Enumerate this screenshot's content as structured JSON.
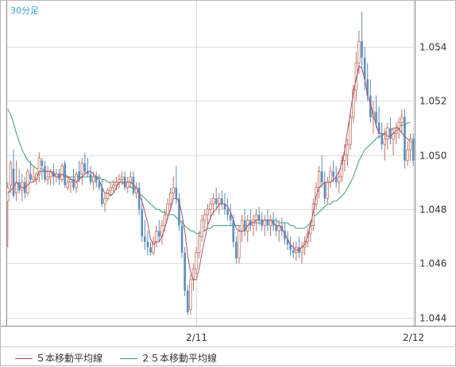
{
  "timeframe_label": "30分足",
  "colors": {
    "up": "#c07060",
    "down": "#5a8ebf",
    "ma5": "#a85070",
    "ma25": "#3aa070",
    "grid": "#dddddd",
    "axis": "#888888"
  },
  "chart_data": {
    "type": "candlestick",
    "title": "",
    "xlabel": "",
    "ylabel": "",
    "ylim": [
      1.0437,
      1.0557
    ],
    "yticks": [
      1.044,
      1.046,
      1.048,
      1.05,
      1.052,
      1.054
    ],
    "ytick_labels": [
      "1.044",
      "1.046",
      "1.048",
      "1.050",
      "1.052",
      "1.054"
    ],
    "xticks": [
      {
        "index": 66,
        "label": "2/11"
      },
      {
        "index": 142,
        "label": "2/12"
      }
    ],
    "grid": true,
    "legend_position": "bottom-left",
    "legend": [
      {
        "name": "５本移動平均線",
        "color_key": "ma5"
      },
      {
        "name": "２５本移動平均線",
        "color_key": "ma25"
      }
    ],
    "ohlc": [
      [
        1.0483,
        1.049,
        1.0466,
        1.0488
      ],
      [
        1.0489,
        1.0498,
        1.0486,
        1.0497
      ],
      [
        1.0495,
        1.0502,
        1.0484,
        1.0485
      ],
      [
        1.0486,
        1.0498,
        1.0483,
        1.049
      ],
      [
        1.049,
        1.0495,
        1.0486,
        1.0487
      ],
      [
        1.0487,
        1.0493,
        1.0483,
        1.049
      ],
      [
        1.049,
        1.0492,
        1.0484,
        1.0486
      ],
      [
        1.0486,
        1.0495,
        1.0485,
        1.0494
      ],
      [
        1.0493,
        1.0498,
        1.049,
        1.0491
      ],
      [
        1.0491,
        1.0496,
        1.049,
        1.0492
      ],
      [
        1.0491,
        1.0494,
        1.0489,
        1.0493
      ],
      [
        1.0493,
        1.0501,
        1.049,
        1.0499
      ],
      [
        1.0498,
        1.0499,
        1.0491,
        1.0496
      ],
      [
        1.0496,
        1.0498,
        1.049,
        1.0491
      ],
      [
        1.0491,
        1.0496,
        1.0489,
        1.0492
      ],
      [
        1.0492,
        1.0495,
        1.0489,
        1.0494
      ],
      [
        1.0494,
        1.0497,
        1.0489,
        1.0492
      ],
      [
        1.0492,
        1.0495,
        1.049,
        1.0493
      ],
      [
        1.0493,
        1.0495,
        1.0489,
        1.0491
      ],
      [
        1.0491,
        1.0497,
        1.049,
        1.0496
      ],
      [
        1.0497,
        1.0498,
        1.0488,
        1.0489
      ],
      [
        1.0488,
        1.0492,
        1.0487,
        1.049
      ],
      [
        1.049,
        1.0492,
        1.0486,
        1.0491
      ],
      [
        1.0491,
        1.0495,
        1.0487,
        1.0488
      ],
      [
        1.0488,
        1.0494,
        1.0486,
        1.0493
      ],
      [
        1.0494,
        1.0498,
        1.049,
        1.0491
      ],
      [
        1.0493,
        1.0499,
        1.0489,
        1.0497
      ],
      [
        1.0497,
        1.0501,
        1.0493,
        1.0494
      ],
      [
        1.0494,
        1.0499,
        1.0492,
        1.0493
      ],
      [
        1.0493,
        1.0496,
        1.0489,
        1.049
      ],
      [
        1.049,
        1.0494,
        1.0487,
        1.0492
      ],
      [
        1.0492,
        1.0494,
        1.0488,
        1.049
      ],
      [
        1.049,
        1.0493,
        1.0487,
        1.0488
      ],
      [
        1.0488,
        1.0491,
        1.0481,
        1.0482
      ],
      [
        1.0482,
        1.0486,
        1.0479,
        1.0484
      ],
      [
        1.0484,
        1.0488,
        1.0483,
        1.0487
      ],
      [
        1.0487,
        1.049,
        1.0485,
        1.0488
      ],
      [
        1.0488,
        1.0491,
        1.0486,
        1.0489
      ],
      [
        1.0489,
        1.0492,
        1.0487,
        1.049
      ],
      [
        1.049,
        1.0493,
        1.0488,
        1.0491
      ],
      [
        1.0491,
        1.0494,
        1.0489,
        1.0492
      ],
      [
        1.0492,
        1.0494,
        1.0487,
        1.0488
      ],
      [
        1.0488,
        1.0492,
        1.0486,
        1.049
      ],
      [
        1.049,
        1.0494,
        1.0488,
        1.0492
      ],
      [
        1.0492,
        1.0494,
        1.0485,
        1.0486
      ],
      [
        1.0486,
        1.049,
        1.0484,
        1.0488
      ],
      [
        1.0488,
        1.049,
        1.0478,
        1.048
      ],
      [
        1.048,
        1.0484,
        1.0468,
        1.047
      ],
      [
        1.047,
        1.0476,
        1.0465,
        1.0468
      ],
      [
        1.0468,
        1.0472,
        1.0463,
        1.0466
      ],
      [
        1.0466,
        1.0468,
        1.0463,
        1.0464
      ],
      [
        1.0464,
        1.047,
        1.0463,
        1.0468
      ],
      [
        1.0468,
        1.0474,
        1.0466,
        1.0472
      ],
      [
        1.0472,
        1.0476,
        1.0468,
        1.047
      ],
      [
        1.047,
        1.0476,
        1.0467,
        1.0474
      ],
      [
        1.0474,
        1.048,
        1.0472,
        1.0478
      ],
      [
        1.0478,
        1.0484,
        1.0476,
        1.0482
      ],
      [
        1.0482,
        1.0488,
        1.048,
        1.0486
      ],
      [
        1.0486,
        1.0492,
        1.0484,
        1.0488
      ],
      [
        1.0488,
        1.0496,
        1.0482,
        1.0484
      ],
      [
        1.0484,
        1.0486,
        1.0472,
        1.0474
      ],
      [
        1.0474,
        1.0476,
        1.0462,
        1.0464
      ],
      [
        1.0464,
        1.0466,
        1.0448,
        1.045
      ],
      [
        1.045,
        1.0452,
        1.0441,
        1.0442
      ],
      [
        1.0443,
        1.0456,
        1.0441,
        1.0454
      ],
      [
        1.0454,
        1.046,
        1.045,
        1.0458
      ],
      [
        1.0458,
        1.0466,
        1.0456,
        1.0464
      ],
      [
        1.0464,
        1.0472,
        1.0462,
        1.047
      ],
      [
        1.047,
        1.0478,
        1.0468,
        1.0476
      ],
      [
        1.0476,
        1.048,
        1.0472,
        1.0478
      ],
      [
        1.0478,
        1.0482,
        1.0474,
        1.048
      ],
      [
        1.048,
        1.0484,
        1.0476,
        1.0482
      ],
      [
        1.0482,
        1.0486,
        1.0478,
        1.0484
      ],
      [
        1.0484,
        1.0488,
        1.048,
        1.0482
      ],
      [
        1.0482,
        1.0486,
        1.0478,
        1.0484
      ],
      [
        1.0484,
        1.0487,
        1.048,
        1.0482
      ],
      [
        1.0482,
        1.0486,
        1.0478,
        1.048
      ],
      [
        1.048,
        1.0484,
        1.0476,
        1.0478
      ],
      [
        1.0478,
        1.0482,
        1.0474,
        1.0476
      ],
      [
        1.0476,
        1.0478,
        1.0466,
        1.0468
      ],
      [
        1.0468,
        1.047,
        1.046,
        1.0462
      ],
      [
        1.0462,
        1.0474,
        1.046,
        1.0472
      ],
      [
        1.0472,
        1.0478,
        1.0468,
        1.0476
      ],
      [
        1.0476,
        1.048,
        1.047,
        1.0472
      ],
      [
        1.0472,
        1.0478,
        1.0468,
        1.0476
      ],
      [
        1.0476,
        1.048,
        1.0472,
        1.0474
      ],
      [
        1.0474,
        1.0478,
        1.047,
        1.0476
      ],
      [
        1.0476,
        1.048,
        1.0472,
        1.0478
      ],
      [
        1.0478,
        1.0481,
        1.0474,
        1.0476
      ],
      [
        1.0476,
        1.0479,
        1.0472,
        1.0474
      ],
      [
        1.0474,
        1.0478,
        1.047,
        1.0476
      ],
      [
        1.0476,
        1.048,
        1.0472,
        1.0474
      ],
      [
        1.0474,
        1.0478,
        1.047,
        1.0476
      ],
      [
        1.0476,
        1.0479,
        1.0472,
        1.0474
      ],
      [
        1.0474,
        1.0477,
        1.047,
        1.0472
      ],
      [
        1.0472,
        1.0476,
        1.0468,
        1.0474
      ],
      [
        1.0474,
        1.0477,
        1.047,
        1.0472
      ],
      [
        1.0472,
        1.0475,
        1.0467,
        1.0469
      ],
      [
        1.0469,
        1.0472,
        1.0465,
        1.0467
      ],
      [
        1.0467,
        1.047,
        1.0463,
        1.0465
      ],
      [
        1.0465,
        1.0468,
        1.0462,
        1.0464
      ],
      [
        1.0464,
        1.0468,
        1.0461,
        1.0466
      ],
      [
        1.0466,
        1.047,
        1.0462,
        1.0464
      ],
      [
        1.0464,
        1.0468,
        1.046,
        1.0466
      ],
      [
        1.0466,
        1.047,
        1.0463,
        1.0468
      ],
      [
        1.0468,
        1.0473,
        1.0466,
        1.0471
      ],
      [
        1.0471,
        1.0476,
        1.0468,
        1.0474
      ],
      [
        1.0474,
        1.0484,
        1.0472,
        1.0482
      ],
      [
        1.0482,
        1.049,
        1.048,
        1.0488
      ],
      [
        1.0488,
        1.0496,
        1.0484,
        1.0494
      ],
      [
        1.0494,
        1.05,
        1.0488,
        1.049
      ],
      [
        1.049,
        1.0494,
        1.0482,
        1.0484
      ],
      [
        1.0484,
        1.0492,
        1.0482,
        1.049
      ],
      [
        1.049,
        1.0496,
        1.0488,
        1.0494
      ],
      [
        1.0494,
        1.0498,
        1.049,
        1.0492
      ],
      [
        1.0492,
        1.0496,
        1.0488,
        1.049
      ],
      [
        1.049,
        1.0494,
        1.0486,
        1.0492
      ],
      [
        1.0492,
        1.05,
        1.049,
        1.0498
      ],
      [
        1.0498,
        1.0504,
        1.0494,
        1.05
      ],
      [
        1.05,
        1.0506,
        1.0496,
        1.0504
      ],
      [
        1.0504,
        1.0516,
        1.0502,
        1.0514
      ],
      [
        1.0514,
        1.0526,
        1.0512,
        1.0524
      ],
      [
        1.0524,
        1.0538,
        1.052,
        1.0534
      ],
      [
        1.0534,
        1.0546,
        1.053,
        1.0542
      ],
      [
        1.0542,
        1.0553,
        1.0532,
        1.0536
      ],
      [
        1.0536,
        1.054,
        1.0524,
        1.0528
      ],
      [
        1.0528,
        1.0534,
        1.052,
        1.0522
      ],
      [
        1.0522,
        1.0528,
        1.0512,
        1.0514
      ],
      [
        1.0514,
        1.052,
        1.0508,
        1.0516
      ],
      [
        1.0516,
        1.0522,
        1.051,
        1.0512
      ],
      [
        1.0512,
        1.0518,
        1.0506,
        1.0508
      ],
      [
        1.0508,
        1.0512,
        1.0502,
        1.0504
      ],
      [
        1.0504,
        1.051,
        1.0498,
        1.0506
      ],
      [
        1.0506,
        1.0512,
        1.0502,
        1.051
      ],
      [
        1.051,
        1.0514,
        1.0504,
        1.0506
      ],
      [
        1.0506,
        1.051,
        1.05,
        1.0508
      ],
      [
        1.0508,
        1.0512,
        1.0504,
        1.051
      ],
      [
        1.051,
        1.0514,
        1.0506,
        1.0512
      ],
      [
        1.0512,
        1.0517,
        1.0508,
        1.0514
      ],
      [
        1.0514,
        1.0517,
        1.0495,
        1.0498
      ],
      [
        1.0498,
        1.0505,
        1.0496,
        1.0502
      ],
      [
        1.0502,
        1.0508,
        1.0498,
        1.0506
      ],
      [
        1.0506,
        1.0508,
        1.0496,
        1.0498
      ]
    ],
    "ma5": [
      1.0486,
      1.0487,
      1.0488,
      1.049,
      1.0489,
      1.0488,
      1.0488,
      1.0489,
      1.049,
      1.049,
      1.0491,
      1.0494,
      1.0494,
      1.0494,
      1.0494,
      1.0494,
      1.0493,
      1.0492,
      1.0492,
      1.0493,
      1.0492,
      1.0492,
      1.0491,
      1.0491,
      1.049,
      1.0491,
      1.0492,
      1.0493,
      1.0494,
      1.0494,
      1.0493,
      1.0492,
      1.0491,
      1.0488,
      1.0486,
      1.0486,
      1.0485,
      1.0486,
      1.0488,
      1.049,
      1.049,
      1.049,
      1.049,
      1.049,
      1.0489,
      1.0488,
      1.0486,
      1.0483,
      1.0479,
      1.0475,
      1.0469,
      1.0467,
      1.0468,
      1.0468,
      1.047,
      1.0473,
      1.0477,
      1.048,
      1.0484,
      1.0484,
      1.0483,
      1.0478,
      1.0472,
      1.0463,
      1.0457,
      1.0454,
      1.0454,
      1.0458,
      1.0464,
      1.0469,
      1.0474,
      1.0477,
      1.0479,
      1.048,
      1.0482,
      1.0482,
      1.0482,
      1.0481,
      1.0479,
      1.0476,
      1.0473,
      1.0472,
      1.0472,
      1.0472,
      1.0474,
      1.0475,
      1.0475,
      1.0476,
      1.0476,
      1.0476,
      1.0476,
      1.0476,
      1.0476,
      1.0475,
      1.0474,
      1.0474,
      1.0473,
      1.0471,
      1.0469,
      1.0467,
      1.0466,
      1.0465,
      1.0465,
      1.0466,
      1.0467,
      1.047,
      1.0474,
      1.0479,
      1.0485,
      1.0488,
      1.0489,
      1.049,
      1.049,
      1.049,
      1.0491,
      1.0492,
      1.0494,
      1.0497,
      1.0502,
      1.0509,
      1.0516,
      1.0523,
      1.0528,
      1.0533,
      1.0532,
      1.0528,
      1.0522,
      1.0519,
      1.0515,
      1.0511,
      1.0508,
      1.0508,
      1.0508,
      1.0507,
      1.0507,
      1.0508,
      1.0509,
      1.051,
      1.0508,
      1.0507,
      1.0506,
      1.0505
    ],
    "ma25": [
      1.0517,
      1.0515,
      1.0512,
      1.0508,
      1.0505,
      1.0502,
      1.05,
      1.0498,
      1.0497,
      1.0496,
      1.0495,
      1.0495,
      1.0495,
      1.0494,
      1.0494,
      1.0494,
      1.0493,
      1.0493,
      1.0493,
      1.0493,
      1.0493,
      1.0492,
      1.0492,
      1.0492,
      1.0492,
      1.0492,
      1.0492,
      1.0492,
      1.0492,
      1.0492,
      1.0492,
      1.0492,
      1.0492,
      1.0491,
      1.0491,
      1.049,
      1.049,
      1.049,
      1.049,
      1.049,
      1.049,
      1.0489,
      1.0489,
      1.0488,
      1.0488,
      1.0487,
      1.0486,
      1.0485,
      1.0484,
      1.0483,
      1.0482,
      1.0481,
      1.048,
      1.048,
      1.0479,
      1.0479,
      1.0478,
      1.0478,
      1.0478,
      1.0477,
      1.0476,
      1.0475,
      1.0474,
      1.0473,
      1.0472,
      1.0472,
      1.0471,
      1.0471,
      1.0472,
      1.0472,
      1.0473,
      1.0473,
      1.0474,
      1.0474,
      1.0474,
      1.0474,
      1.0474,
      1.0474,
      1.0474,
      1.0474,
      1.0474,
      1.0474,
      1.0474,
      1.0474,
      1.0474,
      1.0475,
      1.0475,
      1.0475,
      1.0475,
      1.0475,
      1.0476,
      1.0476,
      1.0476,
      1.0476,
      1.0476,
      1.0475,
      1.0475,
      1.0475,
      1.0475,
      1.0474,
      1.0474,
      1.0473,
      1.0473,
      1.0473,
      1.0473,
      1.0474,
      1.0475,
      1.0477,
      1.0478,
      1.0479,
      1.048,
      1.0481,
      1.0482,
      1.0482,
      1.0483,
      1.0483,
      1.0484,
      1.0485,
      1.0486,
      1.0488,
      1.049,
      1.0492,
      1.0495,
      1.0498,
      1.05,
      1.0502,
      1.0503,
      1.0504,
      1.0505,
      1.0506,
      1.0507,
      1.0507,
      1.0508,
      1.0509,
      1.0509,
      1.051,
      1.051,
      1.0511,
      1.0511,
      1.0511,
      1.0512,
      1.0512
    ]
  }
}
